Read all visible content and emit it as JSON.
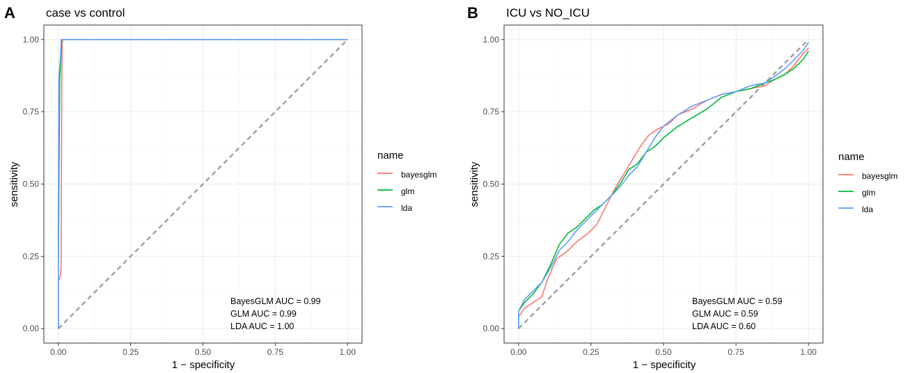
{
  "chart_data": [
    {
      "type": "line",
      "panel_label": "A",
      "title": "case vs control",
      "xlabel": "1 − specificity",
      "ylabel": "sensitivity",
      "xlim": [
        0,
        1
      ],
      "ylim": [
        0,
        1
      ],
      "xticks": [
        "0.00",
        "0.25",
        "0.50",
        "0.75",
        "1.00"
      ],
      "yticks": [
        "0.00",
        "0.25",
        "0.50",
        "0.75",
        "1.00"
      ],
      "grid": true,
      "legend": {
        "title": "name",
        "position": "right",
        "entries": [
          "bayesglm",
          "glm",
          "lda"
        ]
      },
      "reference_line": {
        "x": [
          0,
          1
        ],
        "y": [
          0,
          1
        ],
        "style": "dashed"
      },
      "annotations": [
        "BayesGLM AUC = 0.99",
        "GLM AUC = 0.99",
        "LDA AUC = 1.00"
      ],
      "series": [
        {
          "name": "bayesglm",
          "color": "#F8766D",
          "x": [
            0,
            0,
            0.004,
            0.006,
            0.008,
            0.01,
            0.011,
            0.012,
            0.013,
            0.015,
            0.02,
            0.5,
            1.0
          ],
          "y": [
            0,
            0.17,
            0.17,
            0.18,
            0.19,
            0.22,
            0.6,
            0.87,
            0.98,
            1.0,
            1.0,
            1.0,
            1.0
          ]
        },
        {
          "name": "glm",
          "color": "#00BA38",
          "x": [
            0,
            0,
            0.003,
            0.005,
            0.007,
            0.01,
            0.012,
            0.5,
            1.0
          ],
          "y": [
            0,
            0.2,
            0.62,
            0.86,
            0.9,
            0.97,
            1.0,
            1.0,
            1.0
          ]
        },
        {
          "name": "lda",
          "color": "#619CFF",
          "x": [
            0,
            0,
            0.002,
            0.004,
            0.006,
            0.008,
            0.01,
            0.5,
            1.0
          ],
          "y": [
            0,
            0.4,
            0.86,
            0.9,
            0.92,
            0.95,
            1.0,
            1.0,
            1.0
          ]
        }
      ]
    },
    {
      "type": "line",
      "panel_label": "B",
      "title": "ICU vs NO_ICU",
      "xlabel": "1 − specificity",
      "ylabel": "sensitivity",
      "xlim": [
        0,
        1
      ],
      "ylim": [
        0,
        1
      ],
      "xticks": [
        "0.00",
        "0.25",
        "0.50",
        "0.75",
        "1.00"
      ],
      "yticks": [
        "0.00",
        "0.25",
        "0.50",
        "0.75",
        "1.00"
      ],
      "grid": true,
      "legend": {
        "title": "name",
        "position": "right",
        "entries": [
          "bayesglm",
          "glm",
          "lda"
        ]
      },
      "reference_line": {
        "x": [
          0,
          1
        ],
        "y": [
          0,
          1
        ],
        "style": "dashed"
      },
      "annotations": [
        "BayesGLM AUC = 0.59",
        "GLM AUC = 0.59",
        "LDA AUC = 0.60"
      ],
      "series": [
        {
          "name": "bayesglm",
          "color": "#F8766D",
          "x": [
            0,
            0,
            0.02,
            0.05,
            0.08,
            0.1,
            0.13,
            0.17,
            0.2,
            0.24,
            0.27,
            0.3,
            0.33,
            0.36,
            0.39,
            0.42,
            0.45,
            0.48,
            0.52,
            0.55,
            0.6,
            0.65,
            0.7,
            0.75,
            0.8,
            0.85,
            0.88,
            0.92,
            0.95,
            0.98,
            1.0
          ],
          "y": [
            0,
            0.04,
            0.07,
            0.09,
            0.11,
            0.17,
            0.24,
            0.27,
            0.3,
            0.33,
            0.36,
            0.42,
            0.48,
            0.53,
            0.58,
            0.63,
            0.67,
            0.69,
            0.71,
            0.74,
            0.76,
            0.79,
            0.81,
            0.82,
            0.83,
            0.84,
            0.86,
            0.88,
            0.91,
            0.95,
            0.97
          ]
        },
        {
          "name": "glm",
          "color": "#00BA38",
          "x": [
            0,
            0,
            0.02,
            0.05,
            0.08,
            0.11,
            0.14,
            0.17,
            0.2,
            0.23,
            0.26,
            0.29,
            0.32,
            0.35,
            0.38,
            0.41,
            0.44,
            0.47,
            0.5,
            0.55,
            0.6,
            0.65,
            0.7,
            0.75,
            0.8,
            0.85,
            0.88,
            0.92,
            0.95,
            0.98,
            1.0
          ],
          "y": [
            0,
            0.06,
            0.09,
            0.12,
            0.16,
            0.22,
            0.29,
            0.33,
            0.35,
            0.38,
            0.41,
            0.43,
            0.46,
            0.5,
            0.55,
            0.57,
            0.61,
            0.63,
            0.66,
            0.7,
            0.73,
            0.76,
            0.8,
            0.82,
            0.83,
            0.85,
            0.86,
            0.88,
            0.9,
            0.93,
            0.96
          ]
        },
        {
          "name": "lda",
          "color": "#619CFF",
          "x": [
            0,
            0,
            0.02,
            0.05,
            0.08,
            0.11,
            0.14,
            0.17,
            0.2,
            0.23,
            0.26,
            0.29,
            0.32,
            0.35,
            0.38,
            0.41,
            0.44,
            0.47,
            0.5,
            0.55,
            0.6,
            0.65,
            0.7,
            0.75,
            0.8,
            0.85,
            0.88,
            0.92,
            0.95,
            0.98,
            1.0
          ],
          "y": [
            0,
            0.06,
            0.1,
            0.13,
            0.16,
            0.21,
            0.27,
            0.3,
            0.34,
            0.37,
            0.4,
            0.43,
            0.46,
            0.49,
            0.53,
            0.56,
            0.61,
            0.66,
            0.7,
            0.74,
            0.77,
            0.79,
            0.81,
            0.82,
            0.84,
            0.85,
            0.87,
            0.9,
            0.93,
            0.96,
            0.99
          ]
        }
      ]
    }
  ]
}
